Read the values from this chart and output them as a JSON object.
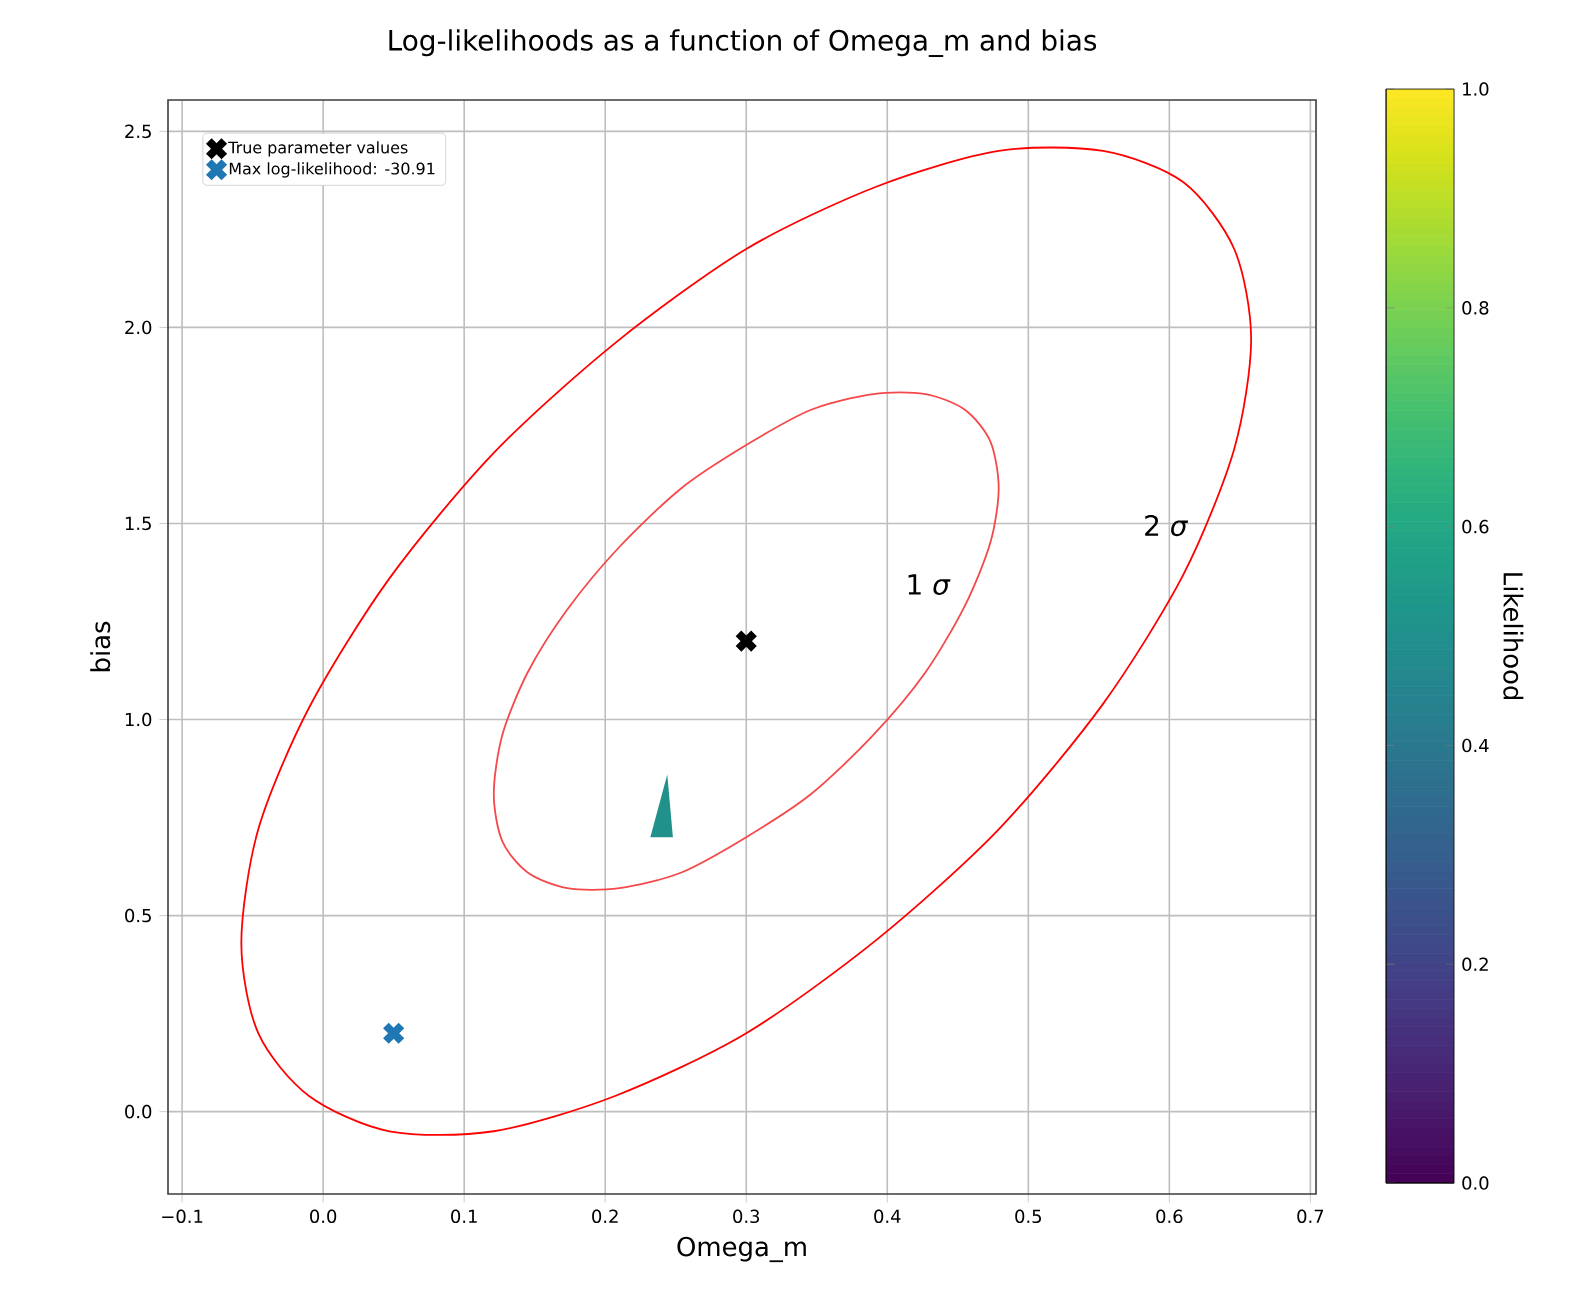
{
  "chart_data": {
    "type": "line",
    "title": "Log-likelihoods as a function of Omega_m and bias",
    "xlabel": "Omega_m",
    "ylabel": "bias",
    "clabel": "Likelihood",
    "xlim": [
      -0.11,
      0.704
    ],
    "ylim": [
      -0.21,
      2.58
    ],
    "xticks": [
      {
        "value": -0.1,
        "label": "−0.1"
      },
      {
        "value": 0,
        "label": "0.0"
      },
      {
        "value": 0.1,
        "label": "0.1"
      },
      {
        "value": 0.2,
        "label": "0.2"
      },
      {
        "value": 0.3,
        "label": "0.3"
      },
      {
        "value": 0.4,
        "label": "0.4"
      },
      {
        "value": 0.5,
        "label": "0.5"
      },
      {
        "value": 0.6,
        "label": "0.6"
      },
      {
        "value": 0.7,
        "label": "0.7"
      }
    ],
    "yticks": [
      {
        "value": 0,
        "label": "0.0"
      },
      {
        "value": 0.5,
        "label": "0.5"
      },
      {
        "value": 1,
        "label": "1.0"
      },
      {
        "value": 1.5,
        "label": "1.5"
      },
      {
        "value": 2,
        "label": "2.0"
      },
      {
        "value": 2.5,
        "label": "2.5"
      }
    ],
    "clim": [
      0,
      1
    ],
    "cticks": [
      {
        "value": 0,
        "label": "0.0"
      },
      {
        "value": 0.2,
        "label": "0.2"
      },
      {
        "value": 0.4,
        "label": "0.4"
      },
      {
        "value": 0.6,
        "label": "0.6"
      },
      {
        "value": 0.8,
        "label": "0.8"
      },
      {
        "value": 1,
        "label": "1.0"
      }
    ],
    "grid": true,
    "legend": "top left",
    "series": [
      {
        "type": "area",
        "color": "#21918c",
        "x": [
          0.232,
          0.244,
          0.248
        ],
        "values": [
          0.7,
          0.86,
          0.7
        ]
      },
      {
        "type": "scatter",
        "name": "True parameter values",
        "color": "#000000",
        "marker": "cross",
        "x": [
          0.3
        ],
        "values": [
          1.2
        ]
      },
      {
        "type": "scatter",
        "name": "Max log-likelihood: -30.91",
        "color": "#1f77b4",
        "marker": "cross",
        "x": [
          0.05
        ],
        "values": [
          0.2
        ]
      }
    ],
    "annotations": [
      "1 *σ*",
      "2 *σ*"
    ]
  }
}
